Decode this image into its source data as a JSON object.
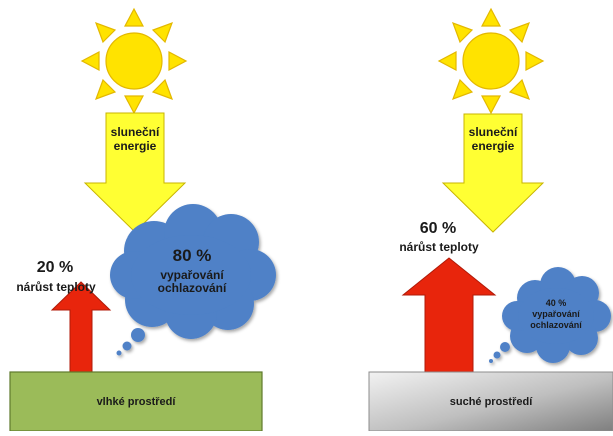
{
  "colors": {
    "sun": "#ffe300",
    "sun_stroke": "#e3b800",
    "arrow_yellow": "#ffff33",
    "arrow_yellow_stroke": "#c8b400",
    "arrow_red": "#e8250c",
    "cloud": "#4f81c7",
    "cloud_stroke": "#3a6aad",
    "ground_wet": "#9bbb59",
    "ground_dry_light": "#f2f2f2",
    "ground_dry_dark": "#7f7f7f"
  },
  "left": {
    "arrow_label_line1": "sluneční",
    "arrow_label_line2": "energie",
    "temp_percent": "20 %",
    "temp_label": "nárůst teploty",
    "cloud_percent": "80 %",
    "cloud_line1": "vypařování",
    "cloud_line2": "ochlazování",
    "ground_label": "vlhké prostředí"
  },
  "right": {
    "arrow_label_line1": "sluneční",
    "arrow_label_line2": "energie",
    "temp_percent": "60 %",
    "temp_label": "nárůst teploty",
    "cloud_percent": "40 %",
    "cloud_line1": "vypařování",
    "cloud_line2": "ochlazování",
    "ground_label": "suché prostředí"
  }
}
